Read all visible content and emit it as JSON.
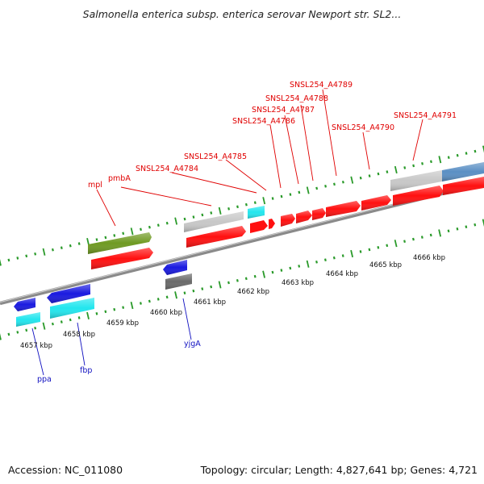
{
  "header": {
    "title": "Salmonella enterica subsp. enterica serovar Newport str. SL2..."
  },
  "footer": {
    "accession": "Accession: NC_011080",
    "topology": "Topology: circular; Length: 4,827,641 bp; Genes: 4,721"
  },
  "colors": {
    "forward_gene": "#ff1010",
    "reverse_gene": "#1a1ae0",
    "trna": "#22e6ee",
    "grey_gene": "#c8c8c8",
    "dark_grey_gene": "#6a6a6a",
    "olive_gene": "#6f9a22",
    "steel_blue_gene": "#5a8fc4",
    "tick": "#2a9a2a",
    "backbone": "#8a8a8a",
    "label_forward": "#e00000",
    "label_reverse": "#1010c0"
  },
  "scale_labels": [
    "4657 kbp",
    "4658 kbp",
    "4659 kbp",
    "4660 kbp",
    "4661 kbp",
    "4662 kbp",
    "4663 kbp",
    "4664 kbp",
    "4665 kbp",
    "4666 kbp"
  ],
  "forward_labels": [
    "mpl",
    "pmbA",
    "SNSL254_A4784",
    "SNSL254_A4785",
    "SNSL254_A4786",
    "SNSL254_A4787",
    "SNSL254_A4788",
    "SNSL254_A4789",
    "SNSL254_A4790",
    "SNSL254_A4791"
  ],
  "reverse_labels": [
    "ppa",
    "fbp",
    "yjgA"
  ]
}
